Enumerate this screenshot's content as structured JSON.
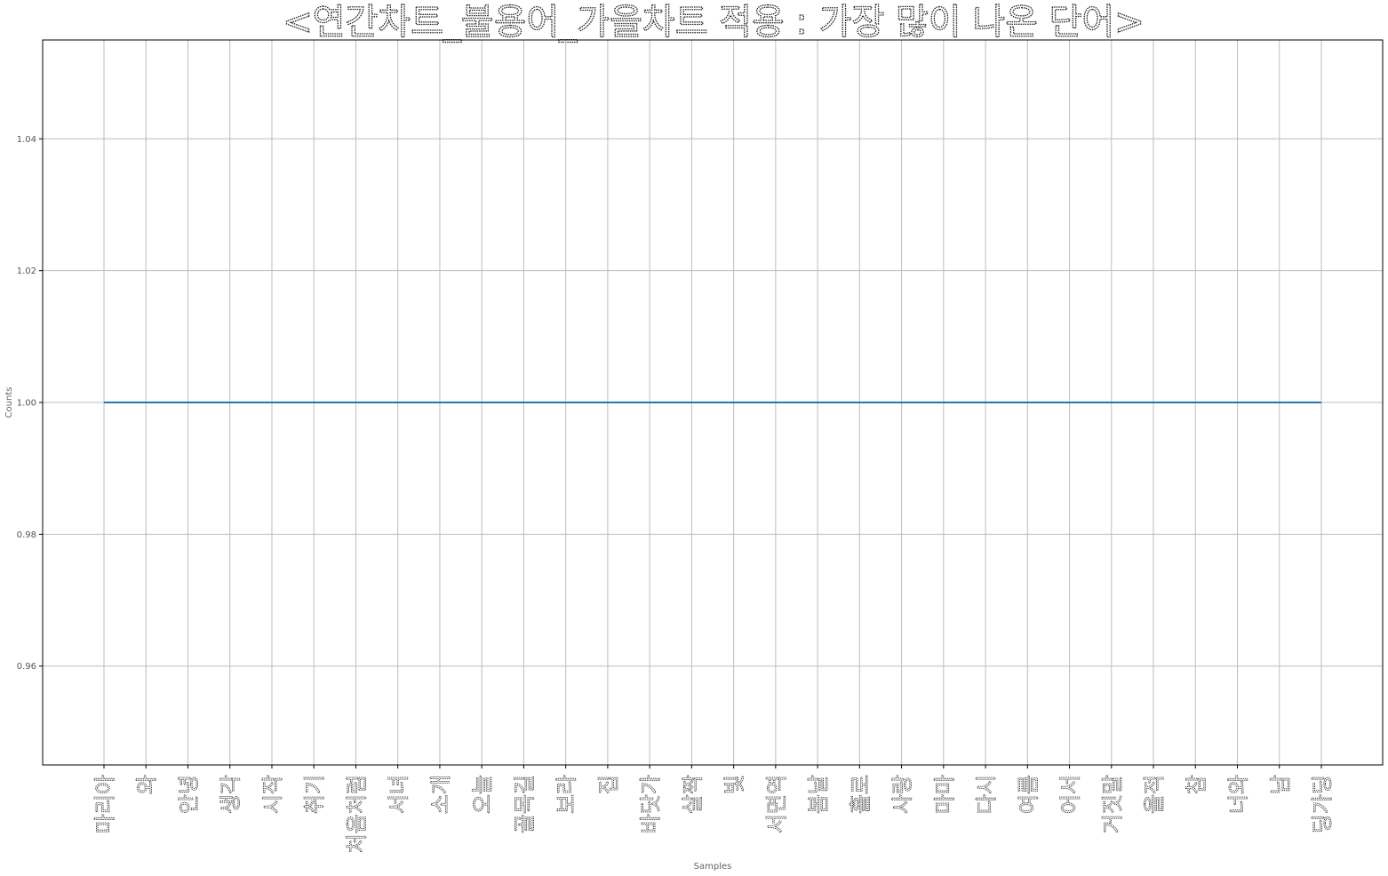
{
  "chart_data": {
    "type": "line",
    "title": "<연간차트_불용어_가을차트 적용 : 가장 많이 나온 단어>",
    "xlabel": "Samples",
    "ylabel": "Counts",
    "categories": [
      "마리아",
      "와",
      "안녕",
      "생각",
      "시작",
      "취기",
      "처음처럼",
      "서녀",
      "소개",
      "오늘",
      "골목길",
      "보라",
      "집",
      "바닷가",
      "살짝",
      "빛",
      "서면역",
      "봄날",
      "홀로",
      "사랑",
      "마마",
      "다시",
      "여름",
      "어서",
      "거짓말",
      "울적",
      "참",
      "너와",
      "남",
      "딩가딩"
    ],
    "series": [
      {
        "values": [
          1,
          1,
          1,
          1,
          1,
          1,
          1,
          1,
          1,
          1,
          1,
          1,
          1,
          1,
          1,
          1,
          1,
          1,
          1,
          1,
          1,
          1,
          1,
          1,
          1,
          1,
          1,
          1,
          1,
          1
        ]
      }
    ],
    "ylim": [
      0.945,
      1.055
    ],
    "yticks": [
      0.96,
      0.98,
      1.0,
      1.02,
      1.04
    ],
    "ytick_labels": [
      "0.96",
      "0.98",
      "1.00",
      "1.02",
      "1.04"
    ],
    "grid": true,
    "line_color": "#1f77b4"
  }
}
